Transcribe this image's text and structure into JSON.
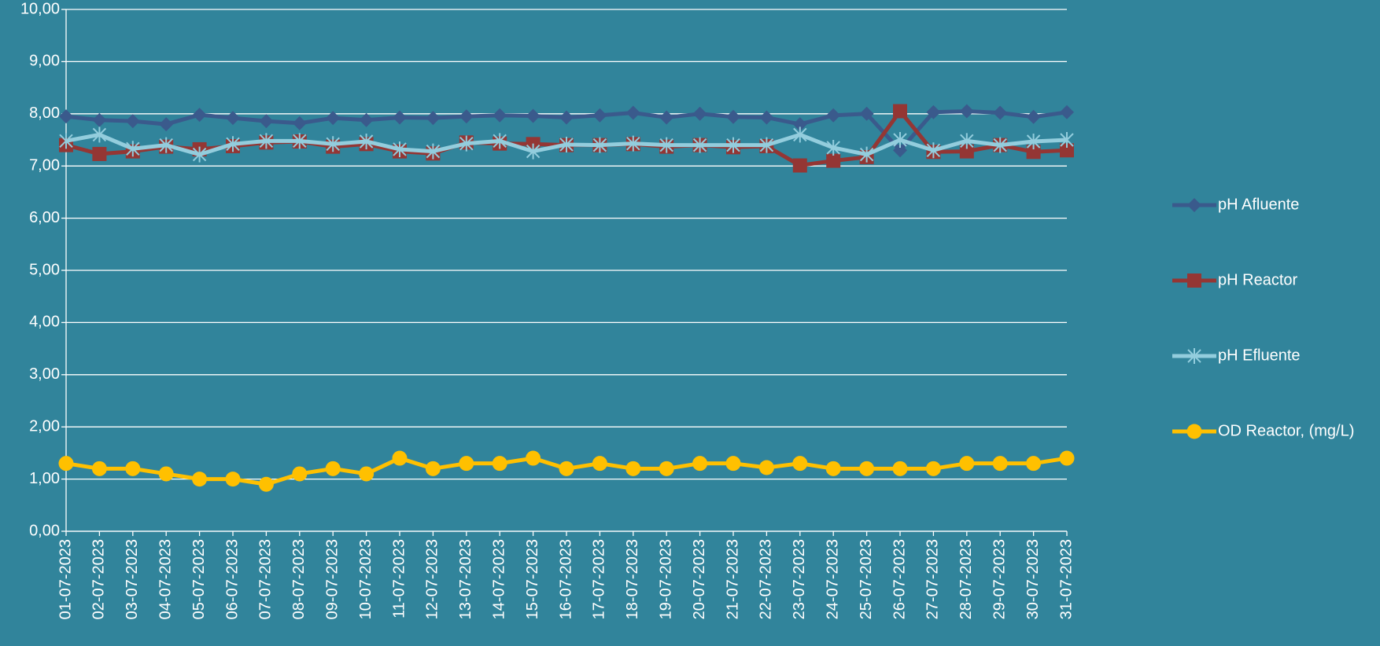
{
  "chart_data": {
    "type": "line",
    "categories": [
      "01-07-2023",
      "02-07-2023",
      "03-07-2023",
      "04-07-2023",
      "05-07-2023",
      "06-07-2023",
      "07-07-2023",
      "08-07-2023",
      "09-07-2023",
      "10-07-2023",
      "11-07-2023",
      "12-07-2023",
      "13-07-2023",
      "14-07-2023",
      "15-07-2023",
      "16-07-2023",
      "17-07-2023",
      "18-07-2023",
      "19-07-2023",
      "20-07-2023",
      "21-07-2023",
      "22-07-2023",
      "23-07-2023",
      "24-07-2023",
      "25-07-2023",
      "26-07-2023",
      "27-07-2023",
      "28-07-2023",
      "29-07-2023",
      "30-07-2023",
      "31-07-2023"
    ],
    "series": [
      {
        "name": "pH Afluente",
        "color": "#3a5a8c",
        "marker": "diamond",
        "values": [
          7.95,
          7.88,
          7.86,
          7.8,
          7.98,
          7.92,
          7.86,
          7.82,
          7.92,
          7.88,
          7.93,
          7.92,
          7.95,
          7.97,
          7.96,
          7.93,
          7.97,
          8.02,
          7.93,
          8.0,
          7.94,
          7.93,
          7.8,
          7.97,
          8.0,
          7.3,
          8.03,
          8.05,
          8.02,
          7.94,
          8.03
        ]
      },
      {
        "name": "pH Reactor",
        "color": "#943634",
        "marker": "square",
        "values": [
          7.4,
          7.23,
          7.28,
          7.37,
          7.32,
          7.38,
          7.45,
          7.47,
          7.37,
          7.42,
          7.28,
          7.24,
          7.45,
          7.43,
          7.42,
          7.4,
          7.4,
          7.42,
          7.37,
          7.4,
          7.36,
          7.38,
          7.01,
          7.1,
          7.17,
          8.05,
          7.27,
          7.28,
          7.4,
          7.27,
          7.3
        ]
      },
      {
        "name": "pH Efluente",
        "color": "#93cddd",
        "marker": "star",
        "values": [
          7.48,
          7.6,
          7.33,
          7.4,
          7.22,
          7.42,
          7.48,
          7.48,
          7.42,
          7.47,
          7.32,
          7.28,
          7.43,
          7.48,
          7.28,
          7.41,
          7.4,
          7.43,
          7.4,
          7.4,
          7.4,
          7.4,
          7.6,
          7.35,
          7.22,
          7.5,
          7.3,
          7.48,
          7.4,
          7.47,
          7.5
        ]
      },
      {
        "name": "OD Reactor, (mg/L)",
        "color": "#ffc000",
        "marker": "circle",
        "values": [
          1.3,
          1.2,
          1.2,
          1.1,
          1.0,
          1.0,
          0.9,
          1.1,
          1.2,
          1.1,
          1.4,
          1.2,
          1.3,
          1.3,
          1.4,
          1.2,
          1.3,
          1.2,
          1.2,
          1.3,
          1.3,
          1.22,
          1.3,
          1.2,
          1.2,
          1.2,
          1.2,
          1.3,
          1.3,
          1.3,
          1.4
        ]
      }
    ],
    "ylim": [
      0,
      10
    ],
    "yticks": [
      {
        "value": 0,
        "label": "0,00"
      },
      {
        "value": 1,
        "label": "1,00"
      },
      {
        "value": 2,
        "label": "2,00"
      },
      {
        "value": 3,
        "label": "3,00"
      },
      {
        "value": 4,
        "label": "4,00"
      },
      {
        "value": 5,
        "label": "5,00"
      },
      {
        "value": 6,
        "label": "6,00"
      },
      {
        "value": 7,
        "label": "7,00"
      },
      {
        "value": 8,
        "label": "8,00"
      },
      {
        "value": 9,
        "label": "9,00"
      },
      {
        "value": 10,
        "label": "10,00"
      }
    ],
    "grid": true,
    "legend": "right"
  }
}
